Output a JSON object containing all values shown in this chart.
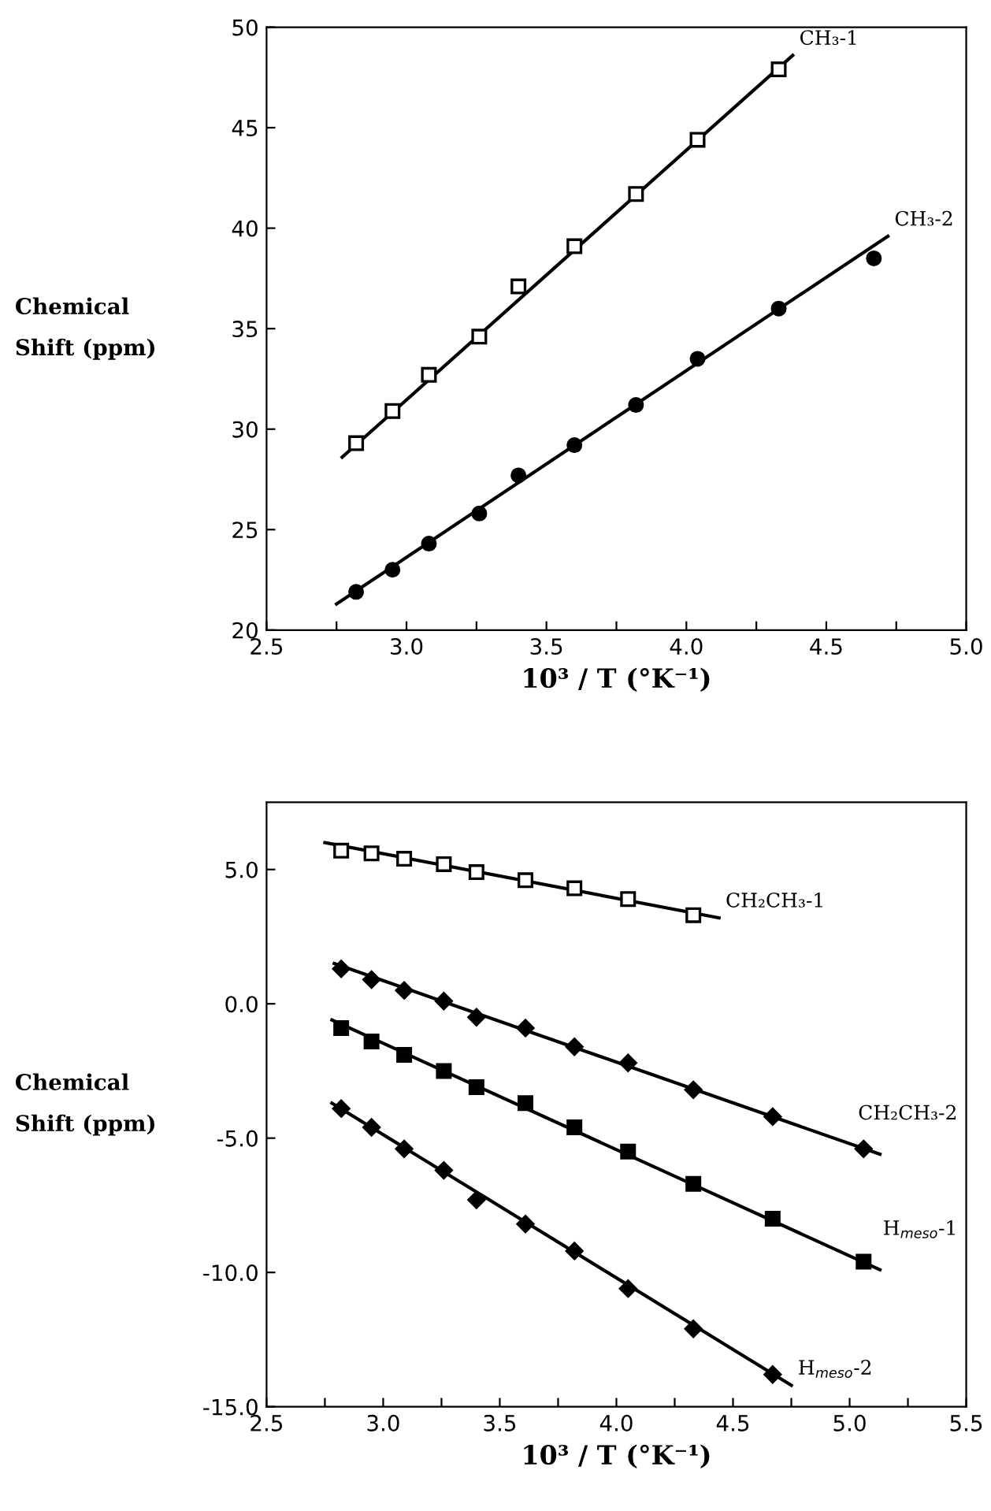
{
  "chart_data": [
    {
      "type": "scatter",
      "xlabel": "10³ / T (°K⁻¹)",
      "ylabel": "Chemical\nShift (ppm)",
      "grid": false,
      "legend": false,
      "xlim": [
        2.5,
        5.0
      ],
      "ylim": [
        20,
        50
      ],
      "xticks": [
        {
          "value": 2.5,
          "label": "2.5"
        },
        {
          "value": 2.75,
          "label": null
        },
        {
          "value": 3.0,
          "label": "3.0"
        },
        {
          "value": 3.25,
          "label": null
        },
        {
          "value": 3.5,
          "label": "3.5"
        },
        {
          "value": 3.75,
          "label": null
        },
        {
          "value": 4.0,
          "label": "4.0"
        },
        {
          "value": 4.25,
          "label": null
        },
        {
          "value": 4.5,
          "label": "4.5"
        },
        {
          "value": 4.75,
          "label": null
        },
        {
          "value": 5.0,
          "label": "5.0"
        }
      ],
      "yticks": [
        20,
        25,
        30,
        35,
        40,
        45,
        50
      ],
      "series": [
        {
          "name": "CH₃-1",
          "type": "scatter",
          "marker": "square",
          "color": "#ffffff",
          "x": [
            2.82,
            2.95,
            3.08,
            3.26,
            3.4,
            3.6,
            3.82,
            4.04,
            4.33
          ],
          "values": [
            29.3,
            30.9,
            32.7,
            34.6,
            37.1,
            39.1,
            41.7,
            44.4,
            47.9
          ]
        },
        {
          "type": "line",
          "color": "#000000",
          "line_style": "solid",
          "x": [
            2.77,
            4.38
          ],
          "values": [
            28.6,
            48.6
          ]
        },
        {
          "name": "CH₃-2",
          "type": "scatter",
          "marker": "circle",
          "color": "#000000",
          "x": [
            2.82,
            2.95,
            3.08,
            3.26,
            3.4,
            3.6,
            3.82,
            4.04,
            4.33,
            4.67
          ],
          "values": [
            21.9,
            23.0,
            24.3,
            25.8,
            27.7,
            29.2,
            31.2,
            33.5,
            36.0,
            38.5
          ]
        },
        {
          "type": "line",
          "color": "#000000",
          "line_style": "solid",
          "x": [
            2.75,
            4.72
          ],
          "values": [
            21.3,
            39.6
          ]
        }
      ]
    },
    {
      "type": "scatter",
      "xlabel": "10³ / T (°K⁻¹)",
      "ylabel": "Chemical\nShift (ppm)",
      "grid": false,
      "legend": false,
      "xlim": [
        2.5,
        5.5
      ],
      "ylim": [
        -15,
        7.5
      ],
      "xticks": [
        {
          "value": 2.5,
          "label": "2.5"
        },
        {
          "value": 2.75,
          "label": null
        },
        {
          "value": 3.0,
          "label": "3.0"
        },
        {
          "value": 3.25,
          "label": null
        },
        {
          "value": 3.5,
          "label": "3.5"
        },
        {
          "value": 3.75,
          "label": null
        },
        {
          "value": 4.0,
          "label": "4.0"
        },
        {
          "value": 4.25,
          "label": null
        },
        {
          "value": 4.5,
          "label": "4.5"
        },
        {
          "value": 4.75,
          "label": null
        },
        {
          "value": 5.0,
          "label": "5.0"
        },
        {
          "value": 5.25,
          "label": null
        },
        {
          "value": 5.5,
          "label": "5.5"
        }
      ],
      "yticks": [
        {
          "value": -15,
          "label": "-15.0"
        },
        {
          "value": -10,
          "label": "-10.0"
        },
        {
          "value": -5,
          "label": "-5.0"
        },
        {
          "value": 0,
          "label": "0.0"
        },
        {
          "value": 5,
          "label": "5.0"
        }
      ],
      "series": [
        {
          "name": "CH₂CH₃-1",
          "type": "scatter",
          "marker": "square",
          "color": "#ffffff",
          "x": [
            2.82,
            2.95,
            3.09,
            3.26,
            3.4,
            3.61,
            3.82,
            4.05,
            4.33
          ],
          "values": [
            5.7,
            5.6,
            5.4,
            5.2,
            4.9,
            4.6,
            4.3,
            3.9,
            3.3
          ]
        },
        {
          "type": "line",
          "color": "#000000",
          "line_style": "solid",
          "x": [
            2.75,
            4.44
          ],
          "values": [
            6.0,
            3.2
          ]
        },
        {
          "name": "CH₂CH₃-2",
          "type": "scatter",
          "marker": "diamond",
          "color": "#000000",
          "x": [
            2.82,
            2.95,
            3.09,
            3.26,
            3.4,
            3.61,
            3.82,
            4.05,
            4.33,
            4.67,
            5.06
          ],
          "values": [
            1.3,
            0.9,
            0.5,
            0.1,
            -0.5,
            -0.9,
            -1.6,
            -2.2,
            -3.2,
            -4.2,
            -5.4
          ]
        },
        {
          "type": "line",
          "color": "#000000",
          "line_style": "solid",
          "x": [
            2.79,
            5.13
          ],
          "values": [
            1.5,
            -5.6
          ]
        },
        {
          "name": "H$_{meso}$-1",
          "type": "scatter",
          "marker": "square",
          "color": "#000000",
          "x": [
            2.82,
            2.95,
            3.09,
            3.26,
            3.4,
            3.61,
            3.82,
            4.05,
            4.33,
            4.67,
            5.06
          ],
          "values": [
            -0.9,
            -1.4,
            -1.9,
            -2.5,
            -3.1,
            -3.7,
            -4.6,
            -5.5,
            -6.7,
            -8.0,
            -9.6
          ]
        },
        {
          "type": "line",
          "color": "#000000",
          "line_style": "solid",
          "x": [
            2.78,
            5.13
          ],
          "values": [
            -0.6,
            -9.9
          ]
        },
        {
          "name": "H$_{meso}$-2",
          "type": "scatter",
          "marker": "diamond",
          "color": "#000000",
          "x": [
            2.82,
            2.95,
            3.09,
            3.26,
            3.4,
            3.61,
            3.82,
            4.05,
            4.33,
            4.67
          ],
          "values": [
            -3.9,
            -4.6,
            -5.4,
            -6.2,
            -7.3,
            -8.2,
            -9.2,
            -10.6,
            -12.1,
            -13.8
          ]
        },
        {
          "type": "line",
          "color": "#000000",
          "line_style": "solid",
          "x": [
            2.78,
            4.75
          ],
          "values": [
            -3.7,
            -14.2
          ]
        }
      ]
    }
  ]
}
